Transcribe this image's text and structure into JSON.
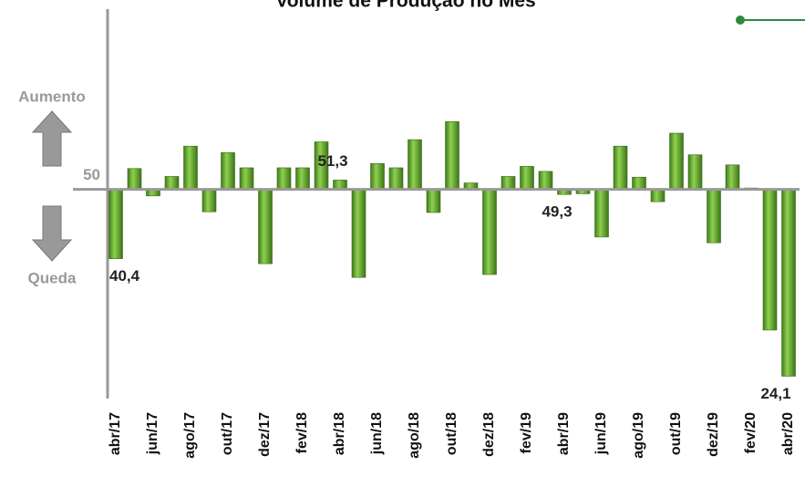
{
  "chart_data": {
    "type": "bar",
    "title": "Volume de Produção no Mês",
    "annotations": [
      "Aumento",
      "Queda"
    ],
    "categories": [
      "abr/17",
      null,
      "jun/17",
      null,
      "ago/17",
      null,
      "out/17",
      null,
      "dez/17",
      null,
      "fev/18",
      null,
      "abr/18",
      null,
      "jun/18",
      null,
      "ago/18",
      null,
      "out/18",
      null,
      "dez/18",
      null,
      "fev/19",
      null,
      "abr/19",
      null,
      "jun/19",
      null,
      "ago/19",
      null,
      "out/19",
      null,
      "dez/19",
      null,
      "fev/20",
      null,
      "abr/20"
    ],
    "values": [
      40.4,
      52.9,
      49.1,
      51.8,
      56.0,
      46.9,
      55.1,
      53.0,
      39.7,
      53.0,
      53.0,
      56.6,
      51.3,
      37.8,
      53.6,
      53.0,
      56.9,
      46.8,
      59.4,
      50.9,
      38.2,
      51.8,
      53.2,
      52.5,
      49.3,
      49.4,
      43.4,
      56.0,
      51.7,
      48.3,
      57.8,
      54.8,
      42.6,
      53.4,
      50.2,
      30.5,
      24.1
    ],
    "value_labels": [
      "40,4",
      null,
      null,
      null,
      null,
      null,
      null,
      null,
      null,
      null,
      null,
      null,
      "51,3",
      null,
      null,
      null,
      null,
      null,
      null,
      null,
      null,
      null,
      null,
      null,
      "49,3",
      null,
      null,
      null,
      null,
      null,
      null,
      null,
      null,
      null,
      null,
      null,
      "24,1"
    ],
    "color": "#5ca32e",
    "ylim": [
      21,
      75
    ],
    "yticks": [
      50
    ],
    "baseline": 50
  }
}
